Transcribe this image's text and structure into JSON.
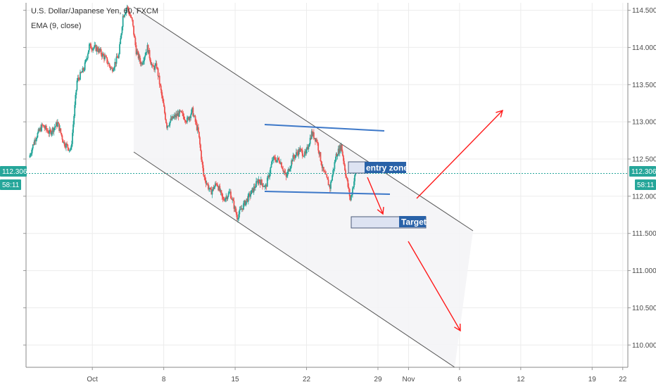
{
  "header": {
    "title": "U.S. Dollar/Japanese Yen, 60, FXCM",
    "indicator": "EMA (9, close)"
  },
  "colors": {
    "up": "#26a69a",
    "down": "#ef5350",
    "price_line": "#26a69a",
    "channel": "#555555",
    "range_lines": "#3d78c8",
    "arrows": "#ff1a1a",
    "label_bg": "#2962a8",
    "zone_fill": "#dde3f2",
    "zone_stroke": "#4a5a78"
  },
  "chart_data": {
    "type": "candlestick",
    "ylim": [
      109.7,
      114.6
    ],
    "yticks": [
      "114.500",
      "114.000",
      "113.500",
      "113.000",
      "112.500",
      "112.000",
      "111.500",
      "111.000",
      "110.500",
      "110.000"
    ],
    "x_ticks": [
      {
        "label": "Oct",
        "day": 1
      },
      {
        "label": "8",
        "day": 8
      },
      {
        "label": "15",
        "day": 15
      },
      {
        "label": "22",
        "day": 22
      },
      {
        "label": "29",
        "day": 29
      },
      {
        "label": "Nov",
        "day": 32
      },
      {
        "label": "6",
        "day": 37
      },
      {
        "label": "12",
        "day": 43
      },
      {
        "label": "19",
        "day": 50
      },
      {
        "label": "22",
        "day": 53
      }
    ],
    "xlim_days": [
      -5.5,
      53.5
    ],
    "last_price": "112.306",
    "countdown": "58:11",
    "price_path": [
      {
        "day": -5.2,
        "v": 112.52
      },
      {
        "day": -4.6,
        "v": 112.78
      },
      {
        "day": -3.9,
        "v": 112.95
      },
      {
        "day": -3.2,
        "v": 112.85
      },
      {
        "day": -2.4,
        "v": 112.98
      },
      {
        "day": -1.8,
        "v": 112.72
      },
      {
        "day": -1.1,
        "v": 112.62
      },
      {
        "day": -0.5,
        "v": 113.55
      },
      {
        "day": 0.2,
        "v": 113.72
      },
      {
        "day": 0.7,
        "v": 114.02
      },
      {
        "day": 1.5,
        "v": 113.98
      },
      {
        "day": 2.3,
        "v": 113.85
      },
      {
        "day": 2.9,
        "v": 113.7
      },
      {
        "day": 3.6,
        "v": 113.9
      },
      {
        "day": 4.0,
        "v": 114.42
      },
      {
        "day": 4.4,
        "v": 114.55
      },
      {
        "day": 4.9,
        "v": 114.35
      },
      {
        "day": 5.3,
        "v": 113.95
      },
      {
        "day": 5.8,
        "v": 113.78
      },
      {
        "day": 6.4,
        "v": 114.0
      },
      {
        "day": 6.9,
        "v": 113.72
      },
      {
        "day": 7.3,
        "v": 113.75
      },
      {
        "day": 7.8,
        "v": 113.35
      },
      {
        "day": 8.3,
        "v": 112.95
      },
      {
        "day": 8.9,
        "v": 113.05
      },
      {
        "day": 9.6,
        "v": 113.12
      },
      {
        "day": 10.3,
        "v": 113.02
      },
      {
        "day": 10.8,
        "v": 113.15
      },
      {
        "day": 11.4,
        "v": 112.85
      },
      {
        "day": 11.9,
        "v": 112.28
      },
      {
        "day": 12.6,
        "v": 112.05
      },
      {
        "day": 13.2,
        "v": 112.18
      },
      {
        "day": 13.8,
        "v": 111.95
      },
      {
        "day": 14.5,
        "v": 112.05
      },
      {
        "day": 15.2,
        "v": 111.72
      },
      {
        "day": 15.9,
        "v": 111.9
      },
      {
        "day": 16.6,
        "v": 112.05
      },
      {
        "day": 17.3,
        "v": 112.22
      },
      {
        "day": 18.0,
        "v": 112.12
      },
      {
        "day": 18.7,
        "v": 112.5
      },
      {
        "day": 19.4,
        "v": 112.48
      },
      {
        "day": 20.0,
        "v": 112.25
      },
      {
        "day": 20.6,
        "v": 112.5
      },
      {
        "day": 21.3,
        "v": 112.62
      },
      {
        "day": 21.9,
        "v": 112.55
      },
      {
        "day": 22.5,
        "v": 112.85
      },
      {
        "day": 23.0,
        "v": 112.75
      },
      {
        "day": 23.6,
        "v": 112.35
      },
      {
        "day": 24.3,
        "v": 112.12
      },
      {
        "day": 24.9,
        "v": 112.55
      },
      {
        "day": 25.4,
        "v": 112.68
      },
      {
        "day": 25.9,
        "v": 112.25
      },
      {
        "day": 26.3,
        "v": 111.95
      },
      {
        "day": 26.8,
        "v": 112.31
      }
    ]
  },
  "annotations": {
    "entry_zone_label": "entry zone",
    "target_label": "Target"
  }
}
